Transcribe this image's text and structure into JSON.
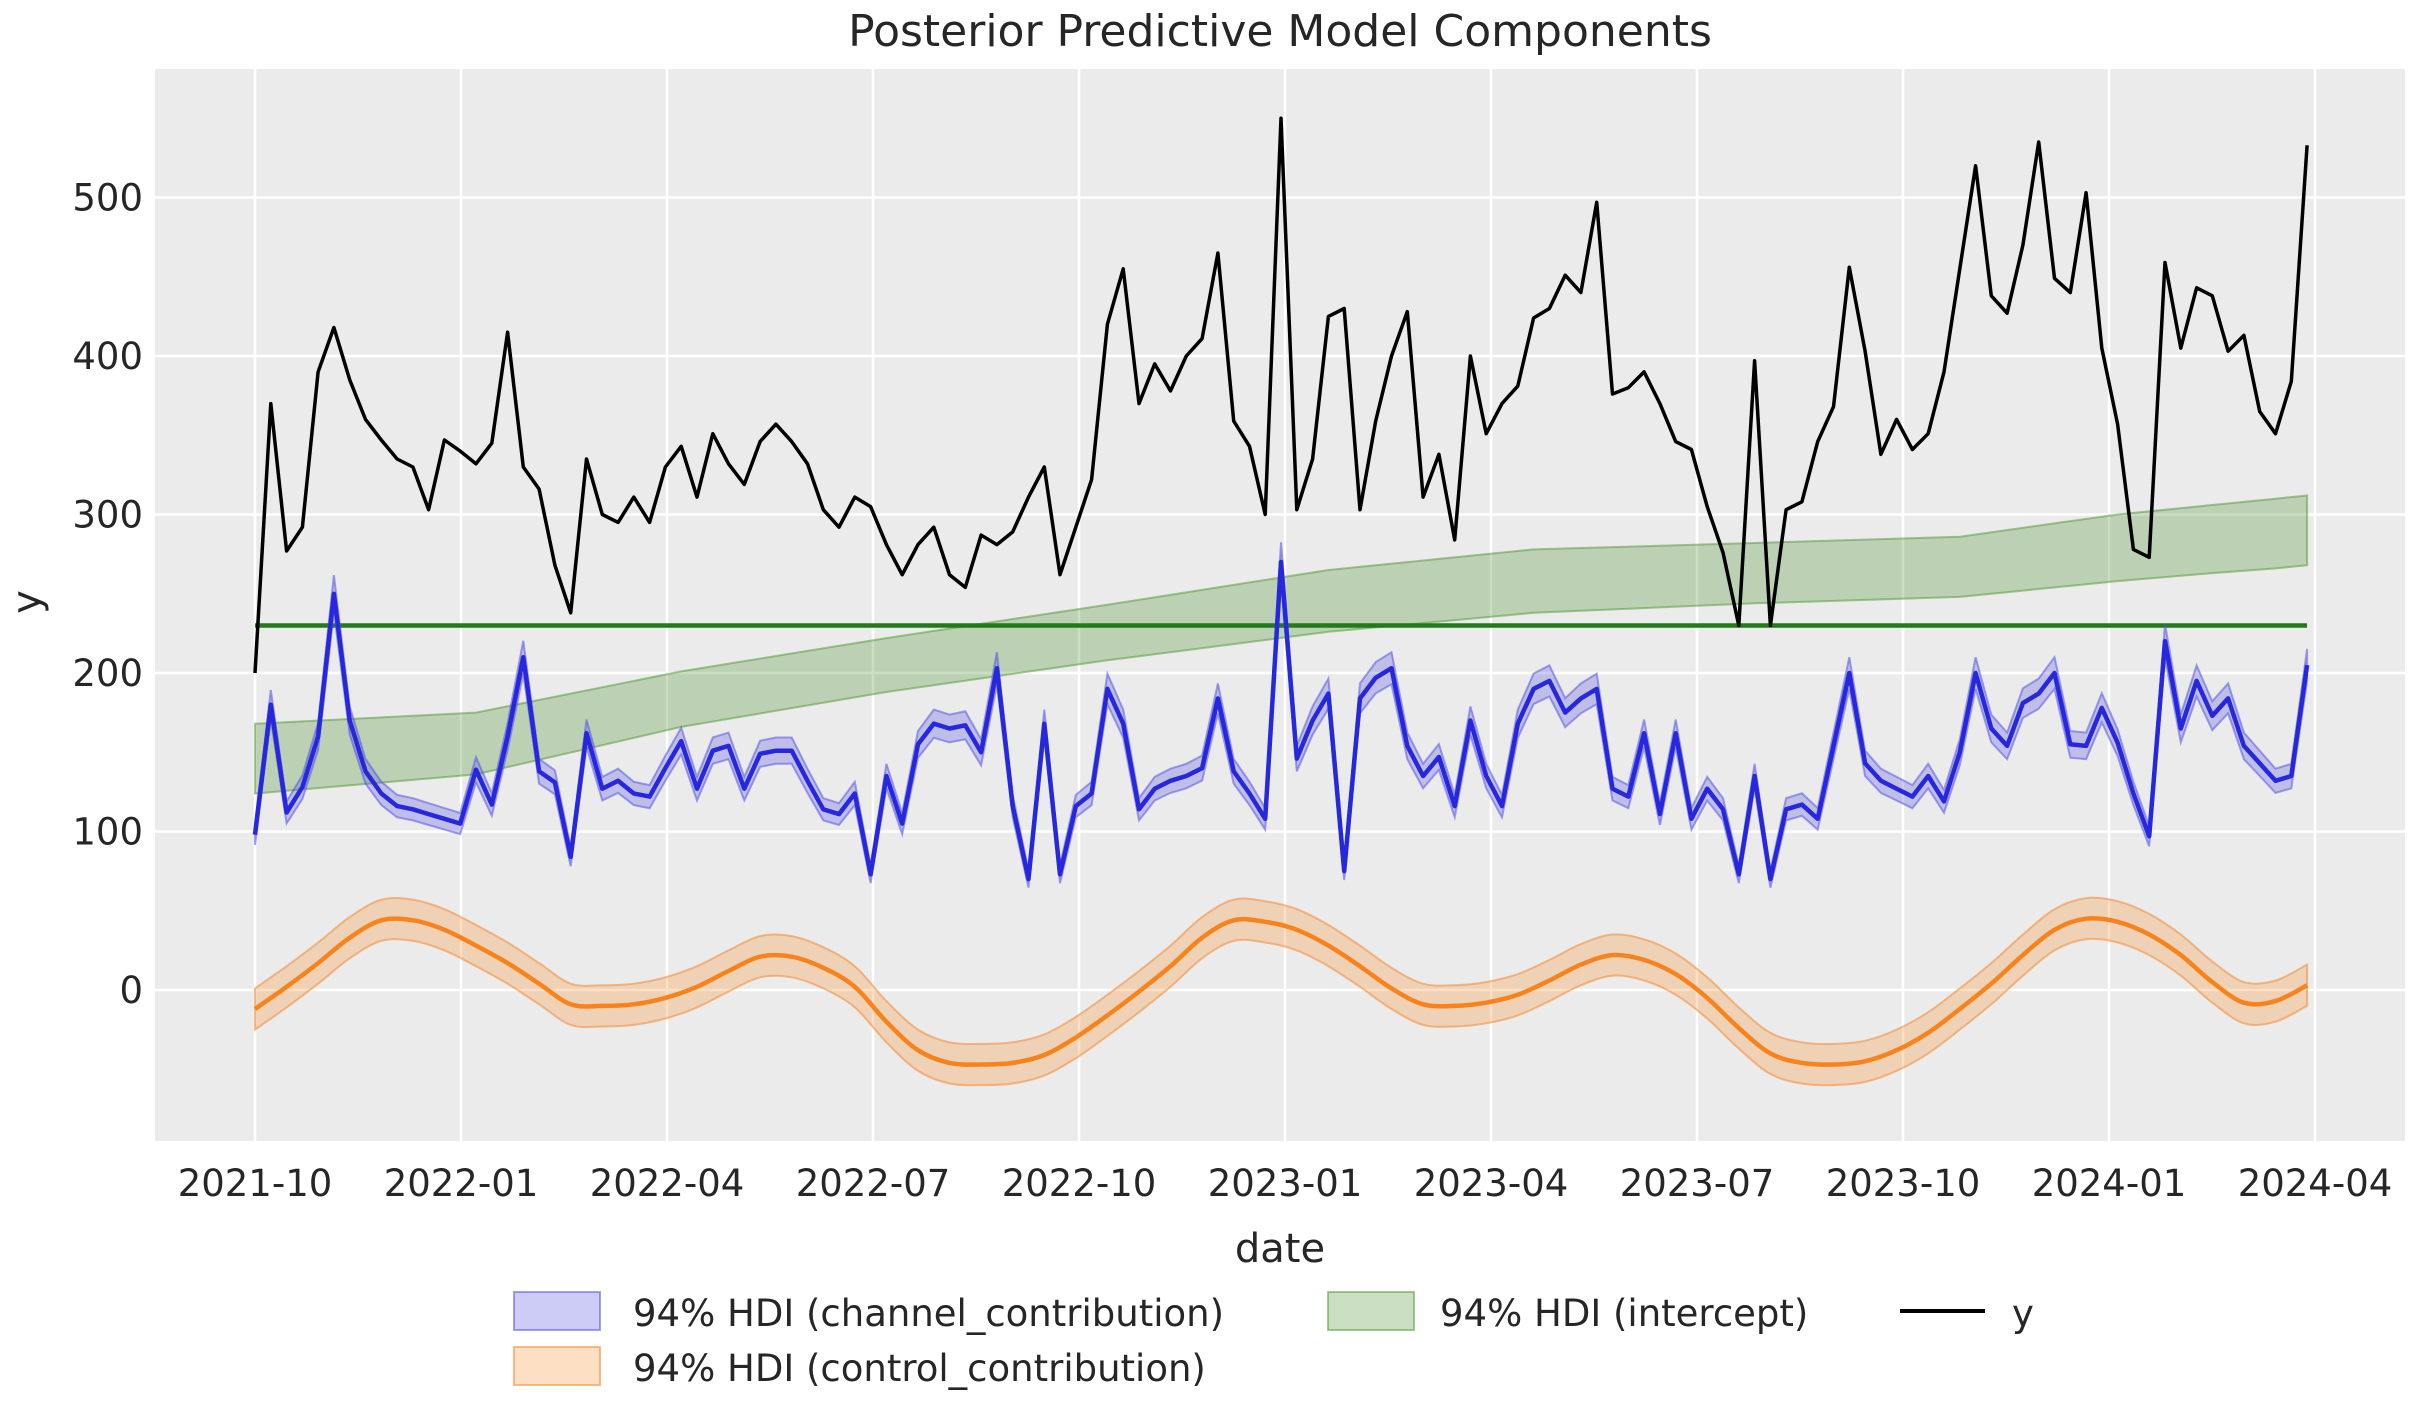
{
  "title": "Posterior Predictive Model Components",
  "axes": {
    "xlabel": "date",
    "ylabel": "y",
    "x_tick_labels": [
      "2021-10",
      "2022-01",
      "2022-04",
      "2022-07",
      "2022-10",
      "2023-01",
      "2023-04",
      "2023-07",
      "2023-10",
      "2024-01",
      "2024-04"
    ],
    "y_tick_labels": [
      "0",
      "100",
      "200",
      "300",
      "400",
      "500"
    ],
    "y_tick_values": [
      0,
      100,
      200,
      300,
      400,
      500
    ]
  },
  "legend": {
    "items": [
      {
        "label": "94% HDI (channel_contribution)",
        "swatch": "blue-patch"
      },
      {
        "label": "94% HDI (control_contribution)",
        "swatch": "orange-patch"
      },
      {
        "label": "94% HDI (intercept)",
        "swatch": "green-patch"
      },
      {
        "label": "y",
        "swatch": "black-line"
      }
    ]
  },
  "colors": {
    "figure_background": "#ffffff",
    "plot_background": "#ebebeb",
    "grid": "#ffffff",
    "text": "#262626",
    "y_line": "#000000",
    "channel_line": "#2727dd",
    "channel_band_fill": "rgba(85,85,230,0.30)",
    "channel_band_edge": "rgba(85,85,230,0.55)",
    "control_line": "#f8831c",
    "control_band_fill": "rgba(250,150,60,0.30)",
    "control_band_edge": "rgba(244,145,65,0.60)",
    "intercept_line": "#227a18",
    "intercept_band_fill": "rgba(80,150,50,0.30)",
    "intercept_band_edge": "rgba(80,150,50,0.50)"
  },
  "chart_data": {
    "type": "line",
    "title": "Posterior Predictive Model Components",
    "xlabel": "date",
    "ylabel": "y",
    "x_axis": "weekly observations from 2021-10 to 2024-04 (week index 0-130)",
    "n_points": 131,
    "ylim": [
      -95,
      581
    ],
    "grid": true,
    "legend_position": "below axes, two rows",
    "series": {
      "y": [
        200,
        370,
        277,
        292,
        390,
        418,
        385,
        360,
        347,
        335,
        330,
        303,
        347,
        340,
        332,
        345,
        415,
        330,
        316,
        268,
        238,
        335,
        300,
        295,
        311,
        295,
        330,
        343,
        311,
        351,
        332,
        319,
        346,
        357,
        346,
        332,
        303,
        292,
        311,
        305,
        281,
        262,
        281,
        292,
        262,
        254,
        287,
        281,
        289,
        311,
        330,
        262,
        292,
        322,
        420,
        455,
        370,
        395,
        378,
        400,
        411,
        465,
        359,
        343,
        300,
        550,
        303,
        335,
        425,
        430,
        303,
        359,
        400,
        428,
        311,
        338,
        284,
        400,
        351,
        370,
        381,
        424,
        430,
        451,
        440,
        497,
        376,
        380,
        390,
        370,
        346,
        341,
        305,
        276,
        230,
        397,
        230,
        303,
        308,
        346,
        368,
        456,
        403,
        338,
        360,
        341,
        351,
        390,
        455,
        520,
        438,
        427,
        470,
        535,
        449,
        440,
        503,
        405,
        357,
        278,
        273,
        459,
        405,
        443,
        438,
        403,
        413,
        365,
        351,
        384,
        533
      ],
      "channel_contribution_mean": [
        98,
        180,
        112,
        128,
        160,
        250,
        170,
        138,
        124,
        116,
        114,
        111,
        108,
        105,
        139,
        117,
        160,
        210,
        138,
        131,
        84,
        162,
        127,
        132,
        124,
        122,
        140,
        157,
        127,
        151,
        154,
        127,
        149,
        151,
        151,
        132,
        114,
        111,
        124,
        73,
        135,
        105,
        155,
        168,
        165,
        167,
        150,
        203,
        116,
        70,
        168,
        73,
        116,
        124,
        190,
        168,
        114,
        127,
        132,
        135,
        140,
        184,
        138,
        124,
        108,
        270,
        146,
        170,
        187,
        75,
        184,
        197,
        203,
        154,
        135,
        147,
        116,
        170,
        135,
        116,
        168,
        190,
        195,
        175,
        184,
        190,
        127,
        122,
        162,
        111,
        162,
        108,
        127,
        114,
        73,
        135,
        70,
        114,
        117,
        108,
        154,
        200,
        143,
        132,
        127,
        122,
        135,
        119,
        150,
        200,
        165,
        154,
        181,
        187,
        200,
        155,
        154,
        178,
        156,
        124,
        97,
        220,
        165,
        195,
        173,
        184,
        154,
        143,
        132,
        135,
        205
      ],
      "channel_hdi": "94% band, half-width approx 3 + 0.035 * value",
      "control_contribution": {
        "week_step": 2,
        "values": [
          -12,
          2,
          17,
          33,
          44,
          44,
          38,
          28,
          17,
          4,
          -9,
          -10,
          -9,
          -5,
          2,
          12,
          21,
          21,
          14,
          2,
          -20,
          -38,
          -46,
          -47,
          -46,
          -41,
          -30,
          -16,
          -1,
          15,
          33,
          44,
          43,
          38,
          28,
          15,
          1,
          -9,
          -10,
          -8,
          -3,
          6,
          16,
          22,
          19,
          10,
          -5,
          -24,
          -40,
          -46,
          -47,
          -45,
          -38,
          -27,
          -12,
          4,
          22,
          38,
          45,
          43,
          35,
          22,
          5,
          -8,
          -7,
          3
        ],
        "hdi_halfwidth": 13,
        "shape": "smooth yearly seasonality: peak ~45 each Nov-Dec, minor peak ~22 each May, deep trough ~-47 each Jul-Aug"
      },
      "intercept": {
        "line_value": 230,
        "hdi_points_week_lo_hi": [
          [
            0,
            124,
            168
          ],
          [
            14,
            136,
            175
          ],
          [
            27,
            166,
            201
          ],
          [
            40,
            188,
            222
          ],
          [
            54,
            208,
            243
          ],
          [
            68,
            226,
            265
          ],
          [
            81,
            238,
            278
          ],
          [
            95,
            244,
            282
          ],
          [
            108,
            248,
            286
          ],
          [
            118,
            258,
            300
          ],
          [
            124,
            263,
            306
          ],
          [
            128,
            266,
            310
          ],
          [
            130,
            268,
            312
          ]
        ]
      }
    }
  }
}
